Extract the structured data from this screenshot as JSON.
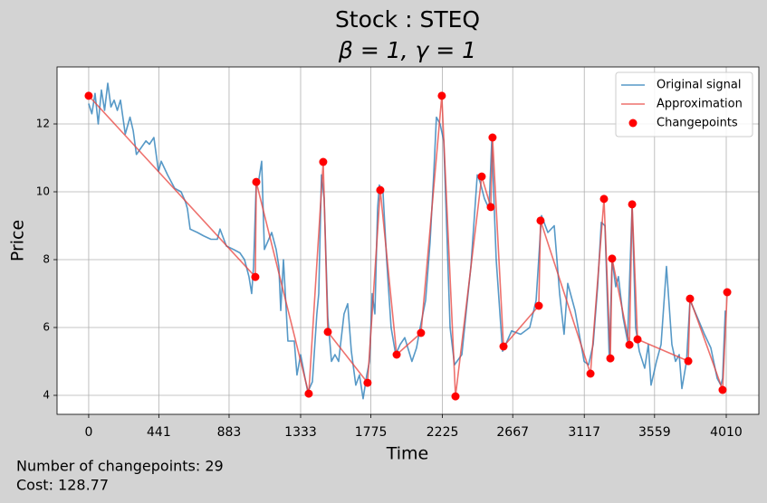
{
  "chart_data": {
    "type": "line",
    "title": "Stock : STEQ",
    "subtitle": "β = 1, γ = 1",
    "x_label": "Time",
    "y_label": "Price",
    "annotations": [
      "Number of changepoints: 29",
      "Cost: 128.77"
    ],
    "xlim": [
      -199,
      4215
    ],
    "ylim": [
      3.44,
      13.68
    ],
    "xticks": [
      0,
      441,
      883,
      1333,
      1775,
      2225,
      2667,
      3117,
      3559,
      4010
    ],
    "yticks": [
      4,
      6,
      8,
      10,
      12
    ],
    "grid": true,
    "legend": "upper right",
    "series": [
      {
        "name": "Original signal",
        "color": "#1f77b4",
        "style": "line",
        "x": [
          0,
          20,
          40,
          60,
          80,
          100,
          120,
          140,
          160,
          180,
          200,
          230,
          260,
          280,
          300,
          330,
          360,
          382,
          410,
          439,
          456,
          496,
          541,
          581,
          609,
          621,
          638,
          684,
          723,
          769,
          809,
          826,
          866,
          911,
          951,
          980,
          1008,
          1025,
          1037,
          1054,
          1065,
          1088,
          1105,
          1151,
          1179,
          1196,
          1208,
          1225,
          1253,
          1293,
          1310,
          1333,
          1361,
          1378,
          1407,
          1435,
          1447,
          1464,
          1481,
          1504,
          1527,
          1549,
          1572,
          1606,
          1629,
          1652,
          1680,
          1703,
          1726,
          1749,
          1766,
          1783,
          1800,
          1817,
          1828,
          1851,
          1874,
          1902,
          1931,
          1959,
          1988,
          2033,
          2062,
          2085,
          2119,
          2147,
          2170,
          2187,
          2210,
          2233,
          2273,
          2301,
          2347,
          2375,
          2404,
          2444,
          2461,
          2489,
          2518,
          2535,
          2563,
          2603,
          2632,
          2660,
          2717,
          2774,
          2814,
          2848,
          2888,
          2928,
          2962,
          2990,
          3013,
          3059,
          3116,
          3144,
          3173,
          3201,
          3224,
          3247,
          3275,
          3292,
          3315,
          3332,
          3361,
          3389,
          3418,
          3440,
          3463,
          3497,
          3520,
          3537,
          3571,
          3600,
          3634,
          3668,
          3691,
          3714,
          3731,
          3760,
          3782,
          3828,
          3873,
          3913,
          3953,
          3976,
          3987,
          4004
        ],
        "values": [
          12.6,
          12.3,
          12.9,
          12.0,
          13.0,
          12.4,
          13.2,
          12.5,
          12.7,
          12.4,
          12.7,
          11.7,
          12.2,
          11.8,
          11.1,
          11.3,
          11.5,
          11.4,
          11.6,
          10.6,
          10.9,
          10.5,
          10.1,
          10.0,
          9.7,
          9.5,
          8.9,
          8.8,
          8.7,
          8.6,
          8.6,
          8.9,
          8.4,
          8.3,
          8.2,
          8.0,
          7.5,
          7.0,
          7.8,
          10.3,
          10.2,
          10.9,
          8.3,
          8.8,
          8.3,
          7.8,
          6.5,
          8.0,
          5.6,
          5.6,
          4.6,
          5.2,
          4.5,
          4.1,
          4.4,
          6.4,
          7.0,
          10.5,
          9.8,
          6.3,
          5.0,
          5.2,
          5.0,
          6.4,
          6.7,
          5.3,
          4.3,
          4.6,
          3.9,
          4.6,
          5.0,
          7.0,
          6.4,
          9.5,
          10.2,
          10.0,
          8.0,
          6.0,
          5.2,
          5.5,
          5.7,
          5.0,
          5.4,
          6.0,
          6.8,
          8.5,
          10.5,
          12.2,
          12.0,
          11.5,
          6.0,
          4.9,
          5.2,
          6.5,
          7.8,
          10.5,
          10.3,
          9.8,
          9.5,
          11.5,
          8.0,
          5.3,
          5.6,
          5.9,
          5.8,
          6.0,
          6.8,
          9.3,
          8.8,
          9.0,
          7.0,
          5.8,
          7.3,
          6.5,
          5.0,
          4.9,
          5.5,
          7.2,
          9.1,
          9.0,
          5.0,
          8.0,
          7.2,
          7.5,
          6.3,
          5.6,
          9.6,
          6.0,
          5.3,
          4.8,
          5.5,
          4.3,
          5.0,
          5.5,
          7.8,
          5.5,
          5.0,
          5.2,
          4.2,
          5.0,
          6.8,
          6.3,
          5.8,
          5.4,
          4.5,
          4.3,
          4.5,
          6.5
        ]
      },
      {
        "name": "Approximation",
        "color": "#e8413c",
        "style": "line",
        "x": [
          0,
          1048,
          1054,
          1384,
          1475,
          1504,
          1754,
          1834,
          1937,
          2090,
          2221,
          2307,
          2472,
          2529,
          2540,
          2609,
          2831,
          2842,
          3156,
          3241,
          3281,
          3292,
          3401,
          3418,
          3452,
          3771,
          3782,
          3987,
          4016
        ],
        "values": [
          12.83,
          7.49,
          10.29,
          4.05,
          10.88,
          5.87,
          4.37,
          10.05,
          5.2,
          5.84,
          12.83,
          3.97,
          10.45,
          9.55,
          11.6,
          5.44,
          6.64,
          9.15,
          4.64,
          9.79,
          5.09,
          8.03,
          5.49,
          9.63,
          5.65,
          5.01,
          6.85,
          4.16,
          7.04
        ]
      },
      {
        "name": "Changepoints",
        "color": "#ff0000",
        "style": "scatter",
        "x": [
          0,
          1048,
          1054,
          1384,
          1475,
          1504,
          1754,
          1834,
          1937,
          2090,
          2221,
          2307,
          2472,
          2529,
          2540,
          2609,
          2831,
          2842,
          3156,
          3241,
          3281,
          3292,
          3401,
          3418,
          3452,
          3771,
          3782,
          3987,
          4016
        ],
        "values": [
          12.83,
          7.49,
          10.29,
          4.05,
          10.88,
          5.87,
          4.37,
          10.05,
          5.2,
          5.84,
          12.83,
          3.97,
          10.45,
          9.55,
          11.6,
          5.44,
          6.64,
          9.15,
          4.64,
          9.79,
          5.09,
          8.03,
          5.49,
          9.63,
          5.65,
          5.01,
          6.85,
          4.16,
          7.04
        ]
      }
    ]
  }
}
